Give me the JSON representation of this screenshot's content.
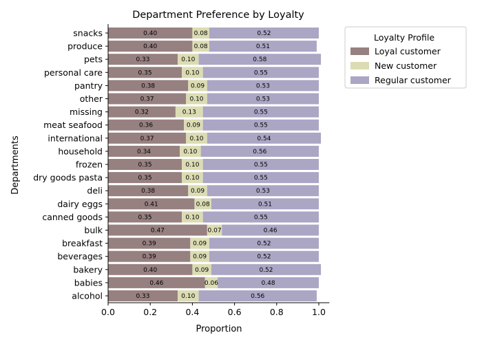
{
  "chart_data": {
    "type": "bar",
    "orientation": "horizontal",
    "stacked": true,
    "title": "Department Preference by Loyalty",
    "xlabel": "Proportion",
    "ylabel": "Departments",
    "xlim": [
      0,
      1.05
    ],
    "xticks": [
      "0.0",
      "0.2",
      "0.4",
      "0.6",
      "0.8",
      "1.0"
    ],
    "grid": false,
    "legend": {
      "title": "Loyalty Profile",
      "placement": "outside-top-right"
    },
    "categories": [
      "snacks",
      "produce",
      "pets",
      "personal care",
      "pantry",
      "other",
      "missing",
      "meat seafood",
      "international",
      "household",
      "frozen",
      "dry goods pasta",
      "deli",
      "dairy eggs",
      "canned goods",
      "bulk",
      "breakfast",
      "beverages",
      "bakery",
      "babies",
      "alcohol"
    ],
    "series": [
      {
        "name": "Loyal customer",
        "color": "#978080",
        "values": [
          0.4,
          0.4,
          0.33,
          0.35,
          0.38,
          0.37,
          0.32,
          0.36,
          0.37,
          0.34,
          0.35,
          0.35,
          0.38,
          0.41,
          0.35,
          0.47,
          0.39,
          0.39,
          0.4,
          0.46,
          0.33
        ]
      },
      {
        "name": "New customer",
        "color": "#dcdcb4",
        "values": [
          0.08,
          0.08,
          0.1,
          0.1,
          0.09,
          0.1,
          0.13,
          0.09,
          0.1,
          0.1,
          0.1,
          0.1,
          0.09,
          0.08,
          0.1,
          0.07,
          0.09,
          0.09,
          0.09,
          0.06,
          0.1
        ]
      },
      {
        "name": "Regular customer",
        "color": "#aba6c4",
        "values": [
          0.52,
          0.51,
          0.58,
          0.55,
          0.53,
          0.53,
          0.55,
          0.55,
          0.54,
          0.56,
          0.55,
          0.55,
          0.53,
          0.51,
          0.55,
          0.46,
          0.52,
          0.52,
          0.52,
          0.48,
          0.56
        ]
      }
    ]
  }
}
